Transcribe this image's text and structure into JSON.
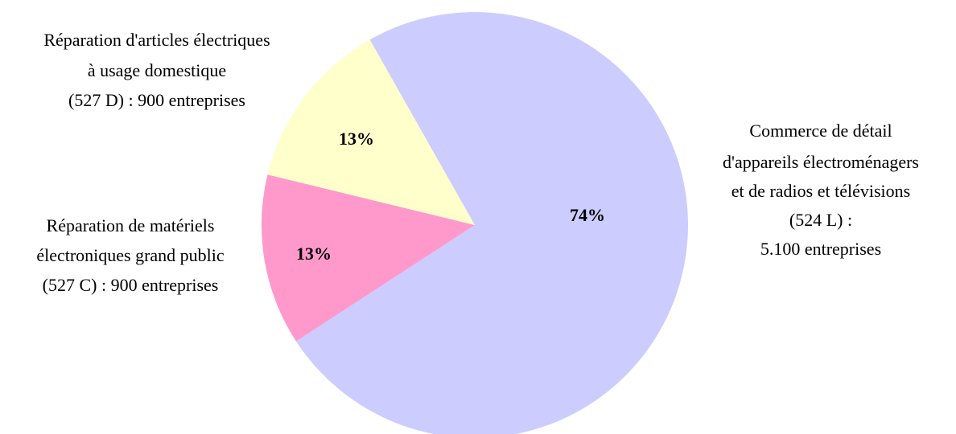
{
  "chart_data": {
    "type": "pie",
    "categories": [
      [
        "Commerce de détail",
        "d'appareils électroménagers",
        "et de radios et télévisions",
        "(524 L) :",
        "5.100 entreprises"
      ],
      [
        "Réparation de matériels",
        "électroniques grand public",
        "(527 C) : 900 entreprises"
      ],
      [
        "Réparation d'articles électriques",
        "à usage domestique",
        "(527 D) : 900 entreprises"
      ]
    ],
    "values": [
      74,
      13,
      13
    ],
    "value_labels": [
      "74%",
      "13%",
      "13%"
    ],
    "colors": [
      "#ccccff",
      "#ff99cc",
      "#ffffcc"
    ]
  }
}
